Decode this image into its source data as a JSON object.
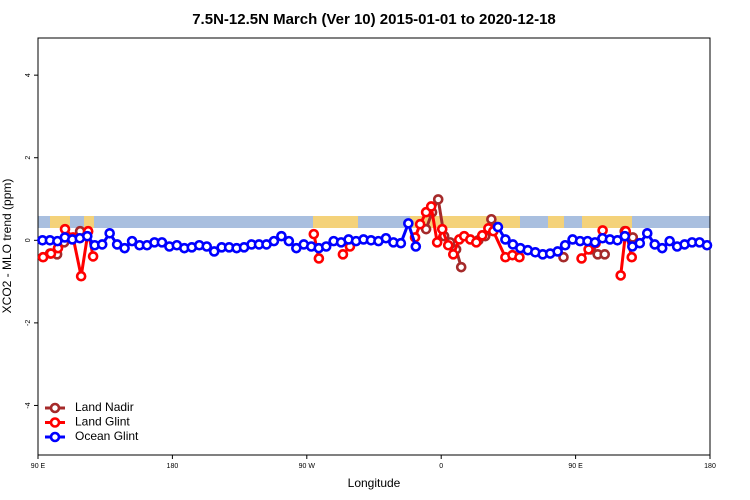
{
  "chart_data": {
    "type": "line",
    "title": "7.5N-12.5N March (Ver 10)   2015-01-01 to 2020-12-18",
    "x_label": "Longitude",
    "y_label": "XCO2 - MLO trend (ppm)",
    "xlim": [
      90,
      540
    ],
    "xticks": [
      {
        "value": 90,
        "label": "90 E"
      },
      180,
      {
        "value": 270,
        "label": "90 W"
      },
      {
        "value": 360,
        "label": "0"
      },
      {
        "value": 450,
        "label": "90 E"
      },
      {
        "value": 540,
        "label": "180"
      }
    ],
    "ylim": [
      -5.2,
      4.9
    ],
    "yticks": [
      -4,
      -2,
      0,
      2,
      4
    ],
    "legend": "bottom-left",
    "series": [
      {
        "name": "Land Nadir",
        "color": "#a52a2a",
        "x": [
          98.1,
          102.8,
          107.5,
          118.2,
          null,
          349.9,
          353.9,
          358,
          362,
          366,
          370,
          373.4,
          null,
          384.9,
          389.5,
          393.6,
          396.9,
          null,
          441.9,
          null,
          460.1,
          464.8,
          469.5,
          null,
          482.9,
          488.3
        ],
        "values": [
          -0.32,
          -0.34,
          -0.05,
          0.22,
          null,
          0.27,
          0.68,
          0.99,
          0.1,
          -0.05,
          -0.22,
          -0.65,
          null,
          0,
          0.1,
          0.51,
          0.32,
          null,
          -0.41,
          null,
          -0.22,
          -0.34,
          -0.34,
          null,
          0.22,
          0.07
        ]
      },
      {
        "name": "Land Glint",
        "color": "#ff0000",
        "x": [
          93.4,
          98.7,
          103.4,
          108.1,
          113.5,
          118.9,
          123.6,
          126.9,
          null,
          274.7,
          278.1,
          null,
          294.2,
          298.9,
          null,
          342.5,
          345.9,
          349.9,
          353.3,
          357.3,
          360.7,
          364.7,
          368.1,
          372.1,
          375.4,
          379.5,
          383.5,
          387.5,
          391.6,
          394.9,
          403,
          407.7,
          412.4,
          null,
          454,
          458.7,
          463.4,
          468.1,
          null,
          480.2,
          483.6,
          487.6
        ],
        "values": [
          -0.41,
          -0.32,
          -0.19,
          0.27,
          0.07,
          -0.87,
          0.22,
          -0.39,
          null,
          0.15,
          -0.44,
          null,
          -0.34,
          -0.15,
          null,
          0.07,
          0.39,
          0.68,
          0.82,
          -0.05,
          0.27,
          -0.12,
          -0.34,
          0.02,
          0.1,
          0.02,
          -0.05,
          0.12,
          0.29,
          0.22,
          -0.41,
          -0.36,
          -0.41,
          null,
          -0.44,
          -0.22,
          -0.07,
          0.24,
          null,
          -0.85,
          0.22,
          -0.41
        ]
      },
      {
        "name": "Ocean Glint",
        "color": "#0000ff",
        "x": [
          93,
          98,
          103,
          108,
          113,
          118,
          123,
          128,
          133,
          138,
          143,
          148,
          153,
          158,
          163,
          168,
          173,
          178,
          183,
          188,
          193,
          198,
          203,
          208,
          213,
          218,
          223,
          228,
          233,
          238,
          243,
          248,
          253,
          258,
          263,
          268,
          273,
          278,
          283,
          288,
          293,
          298,
          303,
          308,
          313,
          318,
          323,
          328,
          333,
          338,
          343,
          null,
          null,
          null,
          null,
          null,
          null,
          null,
          null,
          null,
          null,
          398,
          403,
          408,
          413,
          418,
          423,
          428,
          433,
          438,
          443,
          448,
          453,
          458,
          463,
          468,
          473,
          478,
          483,
          488,
          493,
          498,
          503,
          508,
          513,
          518,
          523,
          528,
          533,
          538
        ],
        "values": [
          0,
          0,
          -0.02,
          0.07,
          0.02,
          0.05,
          0.1,
          -0.12,
          -0.1,
          0.17,
          -0.1,
          -0.19,
          -0.02,
          -0.12,
          -0.12,
          -0.05,
          -0.05,
          -0.15,
          -0.12,
          -0.19,
          -0.17,
          -0.12,
          -0.15,
          -0.27,
          -0.17,
          -0.17,
          -0.19,
          -0.17,
          -0.1,
          -0.1,
          -0.1,
          -0.02,
          0.1,
          -0.02,
          -0.19,
          -0.1,
          -0.15,
          -0.19,
          -0.15,
          -0.02,
          -0.05,
          0.02,
          -0.02,
          0.02,
          0,
          -0.02,
          0.05,
          -0.05,
          -0.07,
          0.41,
          -0.15,
          null,
          null,
          null,
          null,
          null,
          null,
          null,
          null,
          null,
          null,
          0.32,
          0.02,
          -0.1,
          -0.19,
          -0.24,
          -0.29,
          -0.34,
          -0.32,
          -0.27,
          -0.12,
          0.02,
          -0.02,
          -0.02,
          -0.05,
          0.05,
          0.02,
          0,
          0.1,
          -0.15,
          -0.07,
          0.17,
          -0.1,
          -0.19,
          -0.02,
          -0.15,
          -0.1,
          -0.05,
          -0.05,
          -0.12
        ]
      }
    ]
  }
}
